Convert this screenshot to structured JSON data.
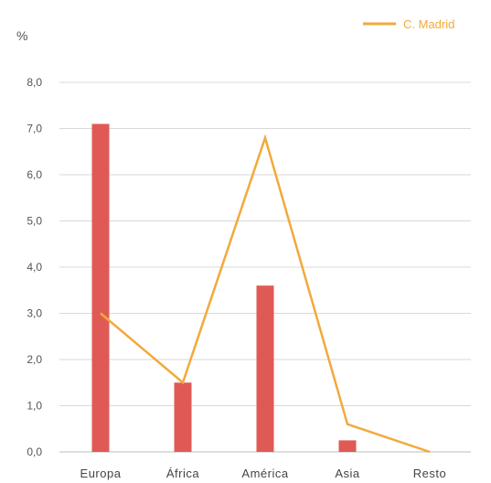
{
  "chart_data": {
    "type": "bar",
    "categories": [
      "Europa",
      "África",
      "América",
      "Asia",
      "Resto"
    ],
    "series": [
      {
        "values": [
          7.1,
          1.5,
          3.6,
          0.25,
          0.0
        ],
        "color": "#e05a55",
        "kind": "bar"
      },
      {
        "name": "C. Madrid",
        "values": [
          3.0,
          1.5,
          6.8,
          0.6,
          0.0
        ],
        "color": "#f2a93b",
        "kind": "line"
      }
    ],
    "ylabel": "%",
    "ylim": [
      0,
      8
    ],
    "yticks": [
      "0,0",
      "1,0",
      "2,0",
      "3,0",
      "4,0",
      "5,0",
      "6,0",
      "7,0",
      "8,0"
    ],
    "grid": true,
    "legend": "top-right"
  }
}
